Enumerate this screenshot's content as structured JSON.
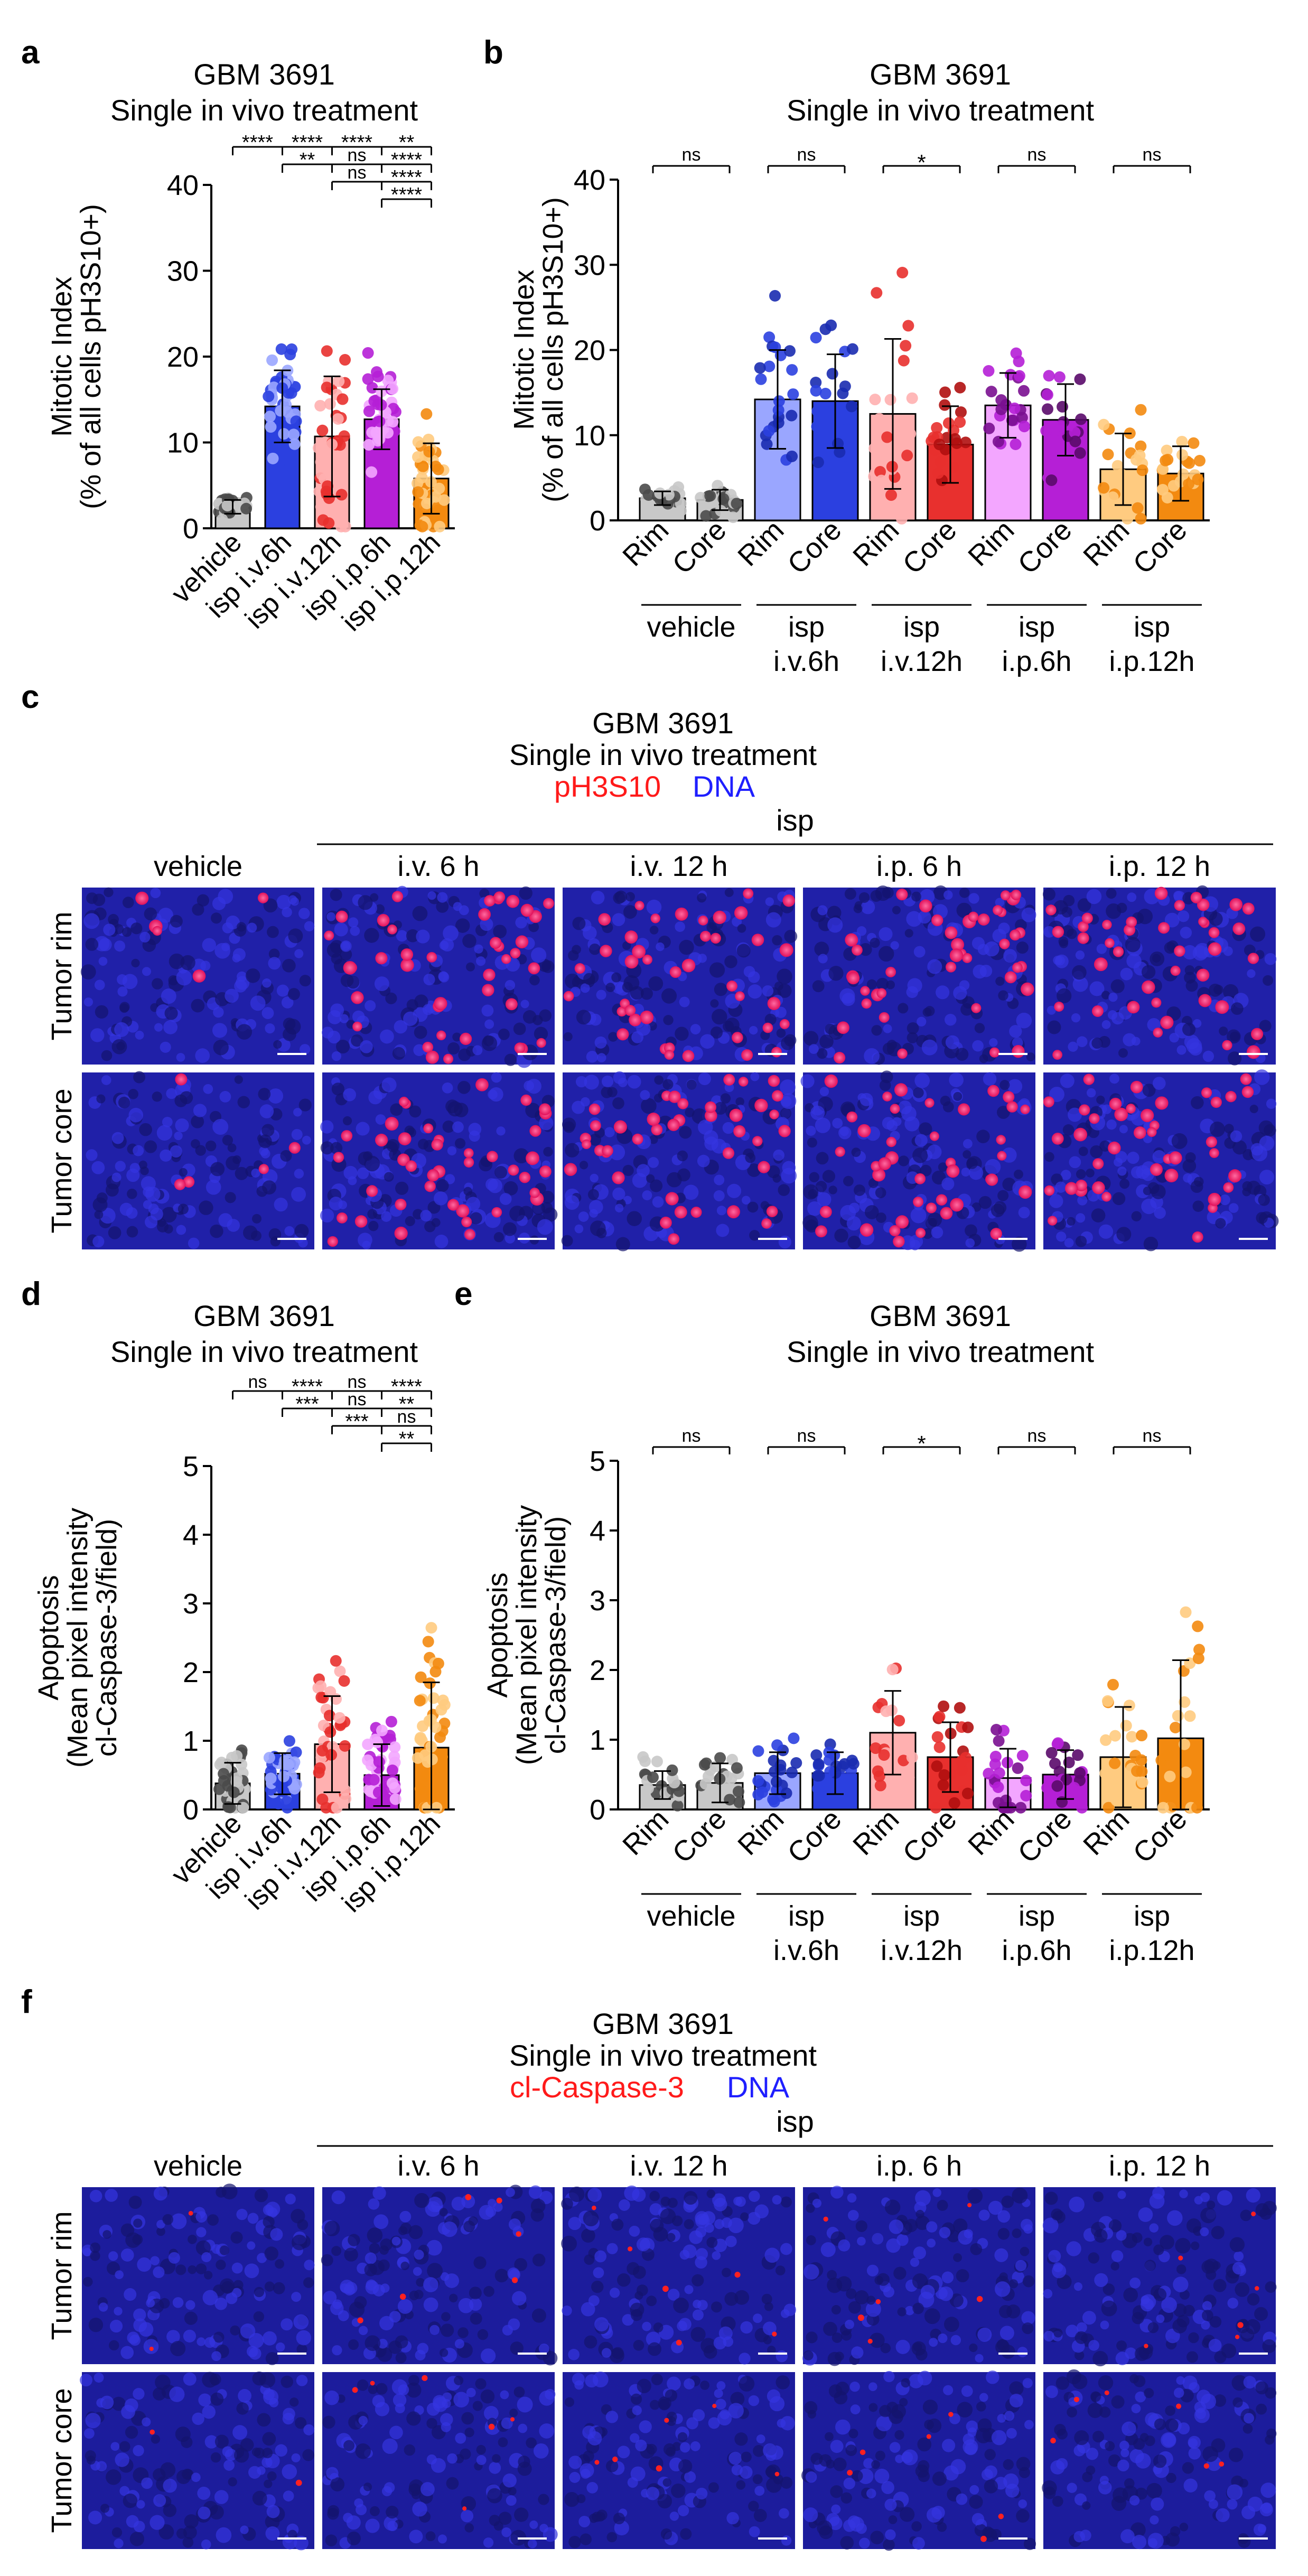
{
  "figure": {
    "panel_letters": [
      "a",
      "b",
      "c",
      "d",
      "e",
      "f"
    ],
    "colors": {
      "vehicle_light": "#c8c8c8",
      "vehicle_dark": "#4a4a4a",
      "iv6": "#2b40e0",
      "iv6_light": "#9aa6ff",
      "iv12": "#e8302e",
      "iv12_light": "#ffb0b0",
      "ip6": "#b51fd6",
      "ip6_light": "#f3a6ff",
      "ip12": "#f38a10",
      "ip12_light": "#ffcb80",
      "red_label": "#ff1a1a",
      "blue_label": "#1f1fff"
    },
    "panel_c": {
      "title_line1": "GBM 3691",
      "title_line2": "Single in vivo treatment",
      "stain_red": "pH3S10",
      "stain_blue": "DNA",
      "group": "isp",
      "columns": [
        "vehicle",
        "i.v. 6 h",
        "i.v. 12 h",
        "i.p. 6 h",
        "i.p. 12 h"
      ],
      "rows": [
        "Tumor rim",
        "Tumor core"
      ]
    },
    "panel_f": {
      "title_line1": "GBM 3691",
      "title_line2": "Single in vivo treatment",
      "stain_red": "cl-Caspase-3",
      "stain_blue": "DNA",
      "group": "isp",
      "columns": [
        "vehicle",
        "i.v. 6 h",
        "i.v. 12 h",
        "i.p. 6 h",
        "i.p. 12 h"
      ],
      "rows": [
        "Tumor rim",
        "Tumor core"
      ]
    }
  },
  "chart_data": [
    {
      "panel": "a",
      "type": "bar",
      "title": "GBM 3691\nSingle in vivo treatment",
      "ylabel": [
        "Mitotic Index",
        "(% of all cells pH3S10+)"
      ],
      "ylim": [
        0,
        40
      ],
      "yticks": [
        0,
        10,
        20,
        30,
        40
      ],
      "categories": [
        "vehicle",
        "isp i.v.6h",
        "isp i.v.12h",
        "isp i.p.6h",
        "isp i.p.12h"
      ],
      "values": [
        2.5,
        14.2,
        10.7,
        12.7,
        5.8
      ],
      "errors": [
        0.8,
        4.2,
        7.0,
        3.5,
        4.1
      ],
      "significance": [
        {
          "label": "****"
        },
        {
          "label": "****"
        },
        {
          "label": "****"
        },
        {
          "label": "**"
        },
        {
          "label": "**"
        },
        {
          "label": "ns"
        },
        {
          "label": "****"
        },
        {
          "label": "ns"
        },
        {
          "label": "****"
        },
        {
          "label": "****"
        }
      ]
    },
    {
      "panel": "b",
      "type": "bar",
      "title": "GBM 3691\nSingle in vivo treatment",
      "ylabel": [
        "Mitotic Index",
        "(% of all cells pH3S10+)"
      ],
      "ylim": [
        0,
        40
      ],
      "yticks": [
        0,
        10,
        20,
        30,
        40
      ],
      "categories": [
        "Rim",
        "Core",
        "Rim",
        "Core",
        "Rim",
        "Core",
        "Rim",
        "Core",
        "Rim",
        "Core"
      ],
      "groups": [
        {
          "line1": "vehicle",
          "line2": ""
        },
        {
          "line1": "isp",
          "line2": "i.v.6h"
        },
        {
          "line1": "isp",
          "line2": "i.v.12h"
        },
        {
          "line1": "isp",
          "line2": "i.p.6h"
        },
        {
          "line1": "isp",
          "line2": "i.p.12h"
        }
      ],
      "values": [
        2.6,
        2.4,
        14.2,
        14.0,
        12.5,
        8.9,
        13.5,
        11.8,
        6.0,
        5.5
      ],
      "errors": [
        0.8,
        1.2,
        5.8,
        5.5,
        8.8,
        4.5,
        3.8,
        4.2,
        4.2,
        3.2
      ],
      "significance": [
        "ns",
        "ns",
        "*",
        "ns",
        "ns"
      ]
    },
    {
      "panel": "d",
      "type": "bar",
      "title": "GBM 3691\nSingle in vivo treatment",
      "ylabel": [
        "Apoptosis",
        "(Mean pixel intensity",
        "cl-Caspase-3/field)"
      ],
      "ylim": [
        0,
        5
      ],
      "yticks": [
        0,
        1,
        2,
        3,
        4,
        5
      ],
      "categories": [
        "vehicle",
        "isp i.v.6h",
        "isp i.v.12h",
        "isp i.p.6h",
        "isp i.p.12h"
      ],
      "values": [
        0.38,
        0.52,
        0.95,
        0.5,
        0.9
      ],
      "errors": [
        0.3,
        0.3,
        0.7,
        0.45,
        0.95
      ],
      "significance": [
        {
          "label": "ns"
        },
        {
          "label": "****"
        },
        {
          "label": "ns"
        },
        {
          "label": "****"
        },
        {
          "label": "***"
        },
        {
          "label": "ns"
        },
        {
          "label": "**"
        },
        {
          "label": "***"
        },
        {
          "label": "ns"
        },
        {
          "label": "**"
        }
      ]
    },
    {
      "panel": "e",
      "type": "bar",
      "title": "GBM 3691\nSingle in vivo treatment",
      "ylabel": [
        "Apoptosis",
        "(Mean pixel intensity",
        "cl-Caspase-3/field)"
      ],
      "ylim": [
        0,
        5
      ],
      "yticks": [
        0,
        1,
        2,
        3,
        4,
        5
      ],
      "categories": [
        "Rim",
        "Core",
        "Rim",
        "Core",
        "Rim",
        "Core",
        "Rim",
        "Core",
        "Rim",
        "Core"
      ],
      "groups": [
        {
          "line1": "vehicle",
          "line2": ""
        },
        {
          "line1": "isp",
          "line2": "i.v.6h"
        },
        {
          "line1": "isp",
          "line2": "i.v.12h"
        },
        {
          "line1": "isp",
          "line2": "i.p.6h"
        },
        {
          "line1": "isp",
          "line2": "i.p.12h"
        }
      ],
      "values": [
        0.35,
        0.38,
        0.52,
        0.52,
        1.1,
        0.75,
        0.45,
        0.5,
        0.75,
        1.02
      ],
      "errors": [
        0.2,
        0.28,
        0.3,
        0.3,
        0.6,
        0.5,
        0.42,
        0.35,
        0.72,
        1.12
      ],
      "significance": [
        "ns",
        "ns",
        "*",
        "ns",
        "ns"
      ]
    }
  ]
}
